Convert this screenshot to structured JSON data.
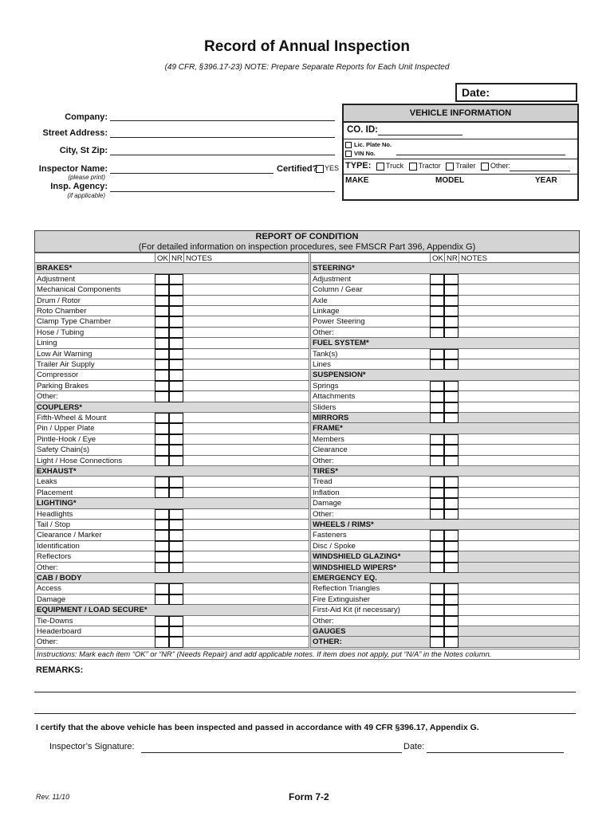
{
  "title": "Record of Annual Inspection",
  "subtitle": "(49 CFR, §396.17-23) NOTE: Prepare Separate Reports for Each Unit Inspected",
  "date_label": "Date:",
  "fields": {
    "company": "Company:",
    "street": "Street Address:",
    "city": "City, St Zip:",
    "inspector": "Inspector Name:",
    "inspector_note": "(please print)",
    "certified": "Certified?",
    "yes": "YES",
    "agency": "Insp. Agency:",
    "agency_note": "(if applicable)"
  },
  "vehicle": {
    "header": "VEHICLE INFORMATION",
    "co_id": "CO. ID:",
    "lic_plate": "Lic. Plate No.",
    "vin": "VIN No.",
    "type_label": "TYPE:",
    "types": [
      "Truck",
      "Tractor",
      "Trailer",
      "Other:"
    ],
    "make": "MAKE",
    "model": "MODEL",
    "year": "YEAR"
  },
  "report": {
    "title": "REPORT OF CONDITION",
    "subtitle": "(For detailed information on inspection procedures, see FMSCR Part 396, Appendix G)",
    "col_ok": "OK",
    "col_nr": "NR",
    "col_notes": "NOTES",
    "left": [
      {
        "label": "BRAKES*",
        "header": true,
        "boxes": false
      },
      {
        "label": "Adjustment",
        "header": false,
        "boxes": true
      },
      {
        "label": "Mechanical Components",
        "header": false,
        "boxes": true
      },
      {
        "label": "Drum / Rotor",
        "header": false,
        "boxes": true
      },
      {
        "label": "Roto Chamber",
        "header": false,
        "boxes": true
      },
      {
        "label": "Clamp Type Chamber",
        "header": false,
        "boxes": true
      },
      {
        "label": "Hose / Tubing",
        "header": false,
        "boxes": true
      },
      {
        "label": "Lining",
        "header": false,
        "boxes": true
      },
      {
        "label": "Low Air Warning",
        "header": false,
        "boxes": true
      },
      {
        "label": "Trailer Air Supply",
        "header": false,
        "boxes": true
      },
      {
        "label": "Compressor",
        "header": false,
        "boxes": true
      },
      {
        "label": "Parking Brakes",
        "header": false,
        "boxes": true
      },
      {
        "label": "Other:",
        "header": false,
        "boxes": true
      },
      {
        "label": "COUPLERS*",
        "header": true,
        "boxes": false
      },
      {
        "label": "Fifth-Wheel & Mount",
        "header": false,
        "boxes": true
      },
      {
        "label": "Pin / Upper Plate",
        "header": false,
        "boxes": true
      },
      {
        "label": "Pintle-Hook / Eye",
        "header": false,
        "boxes": true
      },
      {
        "label": "Safety Chain(s)",
        "header": false,
        "boxes": true
      },
      {
        "label": "Light / Hose Connections",
        "header": false,
        "boxes": true
      },
      {
        "label": "EXHAUST*",
        "header": true,
        "boxes": false
      },
      {
        "label": "Leaks",
        "header": false,
        "boxes": true
      },
      {
        "label": "Placement",
        "header": false,
        "boxes": true
      },
      {
        "label": "LIGHTING*",
        "header": true,
        "boxes": false
      },
      {
        "label": "Headlights",
        "header": false,
        "boxes": true
      },
      {
        "label": "Tail / Stop",
        "header": false,
        "boxes": true
      },
      {
        "label": "Clearance / Marker",
        "header": false,
        "boxes": true
      },
      {
        "label": "Identification",
        "header": false,
        "boxes": true
      },
      {
        "label": "Reflectors",
        "header": false,
        "boxes": true
      },
      {
        "label": "Other:",
        "header": false,
        "boxes": true
      },
      {
        "label": "CAB / BODY",
        "header": true,
        "boxes": false
      },
      {
        "label": "Access",
        "header": false,
        "boxes": true
      },
      {
        "label": "Damage",
        "header": false,
        "boxes": true
      },
      {
        "label": "EQUIPMENT / LOAD SECURE*",
        "header": true,
        "boxes": false
      },
      {
        "label": "Tie-Downs",
        "header": false,
        "boxes": true
      },
      {
        "label": "Headerboard",
        "header": false,
        "boxes": true
      },
      {
        "label": "Other:",
        "header": false,
        "boxes": true
      }
    ],
    "right": [
      {
        "label": "STEERING*",
        "header": true,
        "boxes": false
      },
      {
        "label": "Adjustment",
        "header": false,
        "boxes": true
      },
      {
        "label": "Column / Gear",
        "header": false,
        "boxes": true
      },
      {
        "label": "Axle",
        "header": false,
        "boxes": true
      },
      {
        "label": "Linkage",
        "header": false,
        "boxes": true
      },
      {
        "label": "Power Steering",
        "header": false,
        "boxes": true
      },
      {
        "label": "Other:",
        "header": false,
        "boxes": true
      },
      {
        "label": "FUEL SYSTEM*",
        "header": true,
        "boxes": false
      },
      {
        "label": "Tank(s)",
        "header": false,
        "boxes": true
      },
      {
        "label": "Lines",
        "header": false,
        "boxes": true
      },
      {
        "label": "SUSPENSION*",
        "header": true,
        "boxes": false
      },
      {
        "label": "Springs",
        "header": false,
        "boxes": true
      },
      {
        "label": "Attachments",
        "header": false,
        "boxes": true
      },
      {
        "label": "Sliders",
        "header": false,
        "boxes": true
      },
      {
        "label": "MIRRORS",
        "header": true,
        "boxes": true
      },
      {
        "label": "FRAME*",
        "header": true,
        "boxes": false
      },
      {
        "label": "Members",
        "header": false,
        "boxes": true
      },
      {
        "label": "Clearance",
        "header": false,
        "boxes": true
      },
      {
        "label": "Other:",
        "header": false,
        "boxes": true
      },
      {
        "label": "TIRES*",
        "header": true,
        "boxes": false
      },
      {
        "label": "Tread",
        "header": false,
        "boxes": true
      },
      {
        "label": "Inflation",
        "header": false,
        "boxes": true
      },
      {
        "label": "Damage",
        "header": false,
        "boxes": true
      },
      {
        "label": "Other:",
        "header": false,
        "boxes": true
      },
      {
        "label": "WHEELS / RIMS*",
        "header": true,
        "boxes": false
      },
      {
        "label": "Fasteners",
        "header": false,
        "boxes": true
      },
      {
        "label": "Disc / Spoke",
        "header": false,
        "boxes": true
      },
      {
        "label": "WINDSHIELD GLAZING*",
        "header": true,
        "boxes": true
      },
      {
        "label": "WINDSHIELD WIPERS*",
        "header": true,
        "boxes": true
      },
      {
        "label": "EMERGENCY EQ.",
        "header": true,
        "boxes": false
      },
      {
        "label": "Reflection Triangles",
        "header": false,
        "boxes": true
      },
      {
        "label": "Fire Extinguisher",
        "header": false,
        "boxes": true
      },
      {
        "label": "First-Aid Kit (if necessary)",
        "header": false,
        "boxes": true
      },
      {
        "label": "Other:",
        "header": false,
        "boxes": true
      },
      {
        "label": "GAUGES",
        "header": true,
        "boxes": true
      },
      {
        "label": "OTHER:",
        "header": true,
        "boxes": true
      }
    ],
    "instructions": "Instructions: Mark each item “OK” or “NR” (Needs Repair) and add applicable notes. If item does not apply, put “N/A” in the Notes column."
  },
  "remarks_label": "REMARKS:",
  "certify": "I certify that the above vehicle has been inspected and passed in accordance with 49 CFR §396.17, Appendix G.",
  "signature_label": "Inspector’s Signature:",
  "sig_date_label": "Date:",
  "rev": "Rev. 11/10",
  "form": "Form 7-2"
}
